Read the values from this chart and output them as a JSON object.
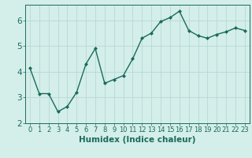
{
  "x": [
    0,
    1,
    2,
    3,
    4,
    5,
    6,
    7,
    8,
    9,
    10,
    11,
    12,
    13,
    14,
    15,
    16,
    17,
    18,
    19,
    20,
    21,
    22,
    23
  ],
  "y": [
    4.15,
    3.15,
    3.15,
    2.45,
    2.65,
    3.2,
    4.3,
    4.9,
    3.55,
    3.7,
    3.85,
    4.5,
    5.3,
    5.5,
    5.95,
    6.1,
    6.35,
    5.6,
    5.4,
    5.3,
    5.45,
    5.55,
    5.7,
    5.6
  ],
  "line_color": "#1a6b5c",
  "marker": "D",
  "markersize": 2.0,
  "linewidth": 1.0,
  "xlabel": "Humidex (Indice chaleur)",
  "ylim": [
    2.0,
    6.6
  ],
  "xlim": [
    -0.5,
    23.5
  ],
  "yticks": [
    2,
    3,
    4,
    5,
    6
  ],
  "xticks": [
    0,
    1,
    2,
    3,
    4,
    5,
    6,
    7,
    8,
    9,
    10,
    11,
    12,
    13,
    14,
    15,
    16,
    17,
    18,
    19,
    20,
    21,
    22,
    23
  ],
  "xtick_labels": [
    "0",
    "1",
    "2",
    "3",
    "4",
    "5",
    "6",
    "7",
    "8",
    "9",
    "10",
    "11",
    "12",
    "13",
    "14",
    "15",
    "16",
    "17",
    "18",
    "19",
    "20",
    "21",
    "22",
    "23"
  ],
  "bg_color": "#d4eeea",
  "grid_color": "#b8d8d4",
  "tick_color": "#1a6b5c",
  "label_color": "#1a6b5c",
  "xlabel_fontsize": 7.5,
  "tick_fontsize": 6.0,
  "ytick_fontsize": 7.5
}
